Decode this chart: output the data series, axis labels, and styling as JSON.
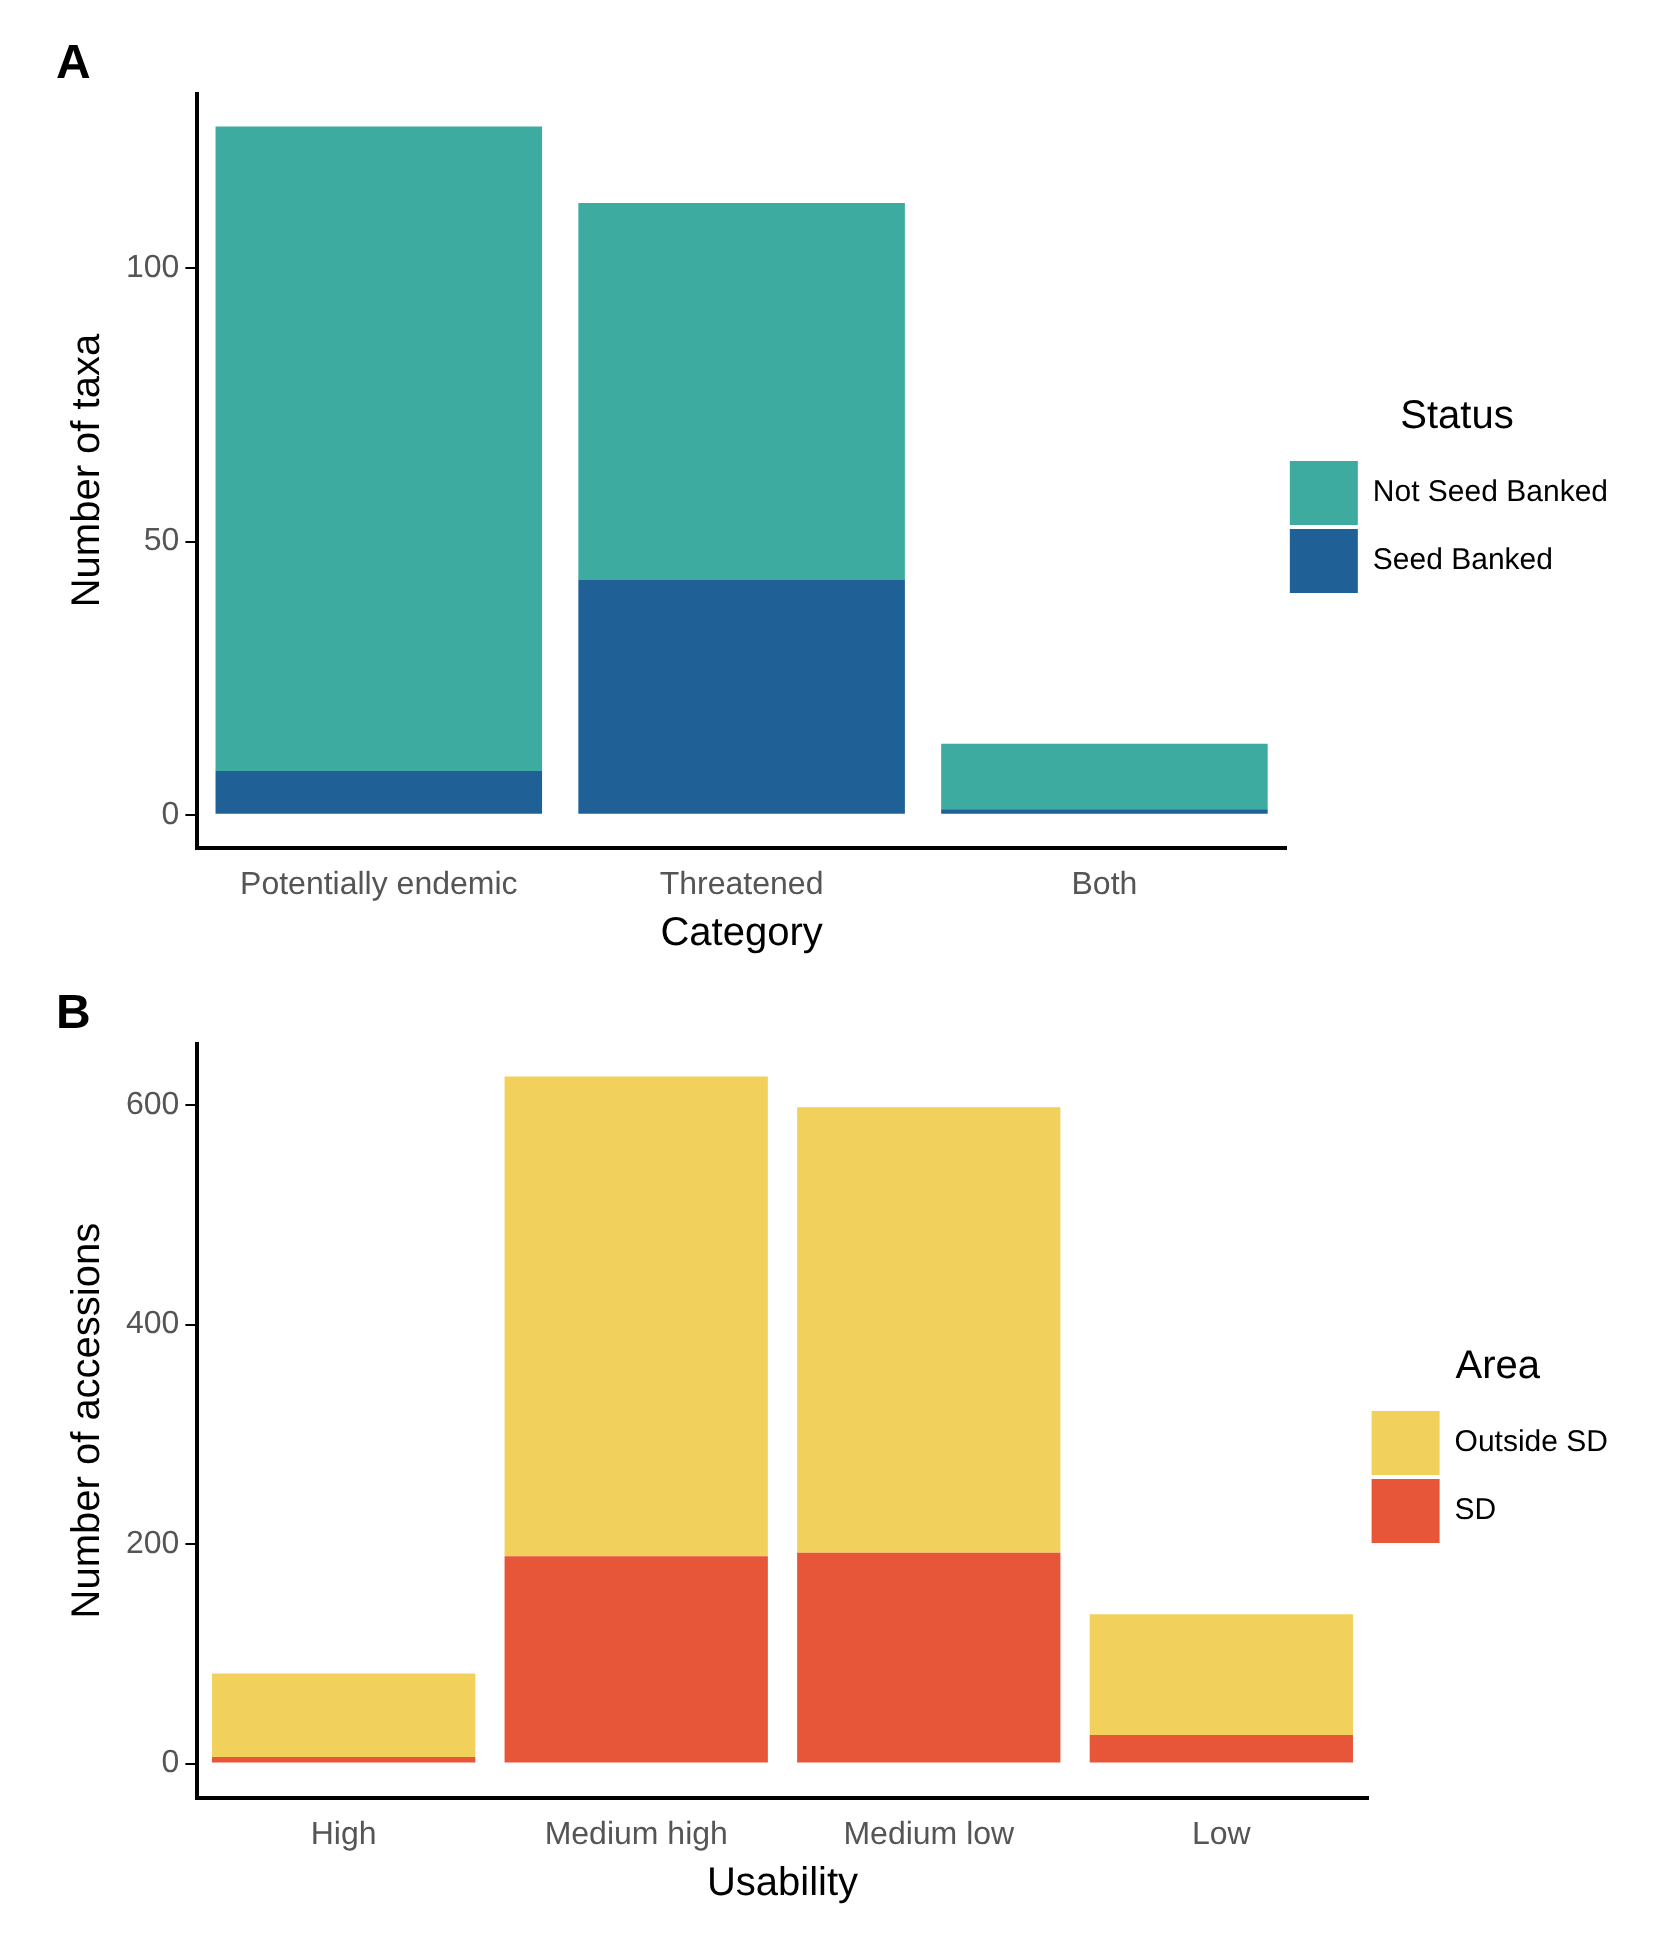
{
  "chart_data": [
    {
      "type": "bar",
      "title": "A",
      "xlabel": "Category",
      "ylabel": "Number of taxa",
      "legend_title": "Status",
      "categories": [
        "Potentially endemic",
        "Threatened",
        "Both"
      ],
      "stacked": true,
      "series": [
        {
          "name": "Seed Banked",
          "color": "#1f6096",
          "values": [
            8,
            43,
            1
          ]
        },
        {
          "name": "Not Seed Banked",
          "color": "#3daba0",
          "values": [
            118,
            69,
            12
          ]
        }
      ],
      "ylim": [
        -6,
        132
      ],
      "yticks": [
        0,
        50,
        100
      ],
      "grid": false,
      "legend": "right"
    },
    {
      "type": "bar",
      "title": "B",
      "xlabel": "Usability",
      "ylabel": "Number of accessions",
      "legend_title": "Area",
      "categories": [
        "High",
        "Medium high",
        "Medium low",
        "Low"
      ],
      "stacked": true,
      "series": [
        {
          "name": "SD",
          "color": "#e8563a",
          "values": [
            6,
            189,
            192,
            26
          ]
        },
        {
          "name": "Outside SD",
          "color": "#f1d15c",
          "values": [
            76,
            437,
            406,
            110
          ]
        }
      ],
      "ylim": [
        -31,
        656
      ],
      "yticks": [
        0,
        200,
        400,
        600
      ],
      "grid": false,
      "legend": "right"
    }
  ]
}
